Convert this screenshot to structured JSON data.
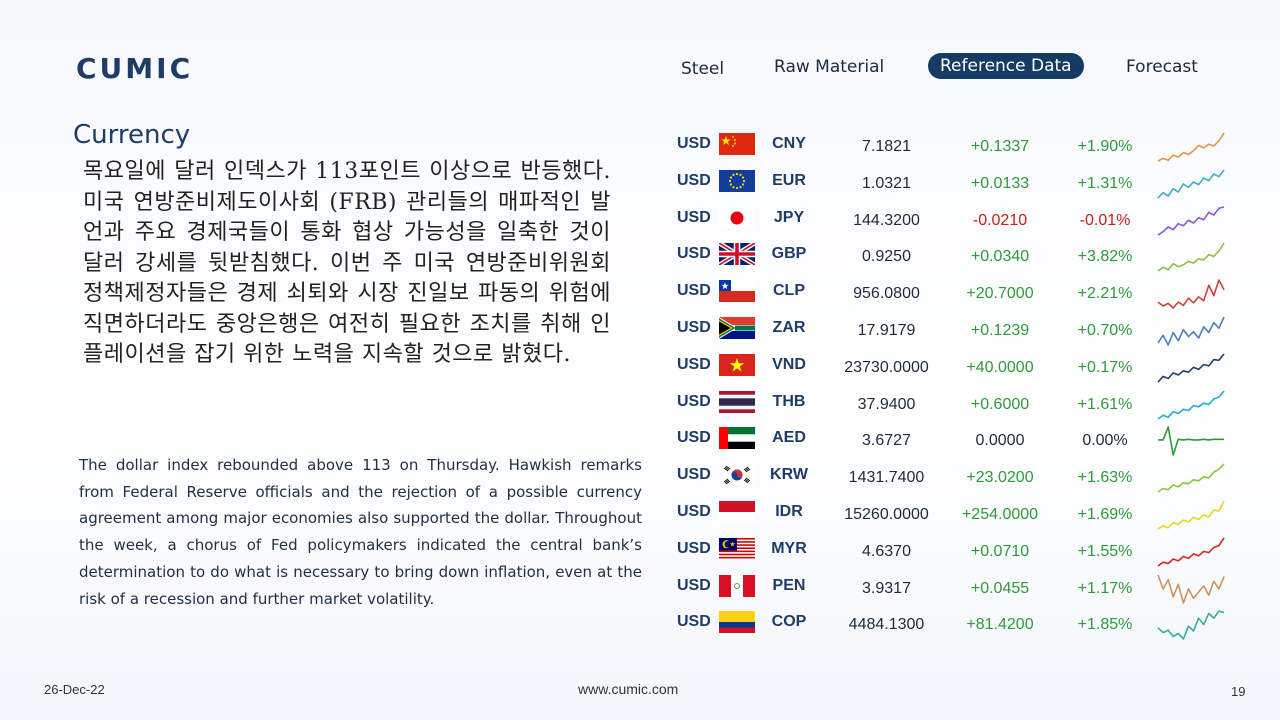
{
  "header": {
    "logo": "CUMIC",
    "nav": [
      {
        "label": "Steel",
        "active": false
      },
      {
        "label": "Raw Material",
        "active": false
      },
      {
        "label": "Reference Data",
        "active": true
      },
      {
        "label": "Forecast",
        "active": false
      }
    ]
  },
  "section": {
    "title": "Currency",
    "korean_text": "목요일에 달러 인덱스가 113포인트 이상으로 반등했다. 미국 연방준비제도이사회 (FRB) 관리들의 매파적인 발언과 주요 경제국들이 통화 협상 가능성을 일축한 것이 달러 강세를 뒷받침했다. 이번 주 미국 연방준비위원회 정책제정자들은 경제 쇠퇴와 시장 진일보 파동의 위험에 직면하더라도 중앙은행은 여전히 필요한 조치를 취해 인플레이션을 잡기 위한 노력을 지속할 것으로 밝혔다.",
    "english_text": "The dollar index rebounded above 113 on Thursday. Hawkish remarks from Federal Reserve officials and the rejection of a possible currency agreement among major economies also supported the dollar. Throughout the week, a chorus of Fed policymakers indicated the central bank’s determination to do what is necessary to bring down inflation, even at the risk of a recession and further market volatility."
  },
  "currency_table": [
    {
      "base": "USD",
      "quote": "CNY",
      "flag": "china-flag-icon",
      "rate": "7.1821",
      "change": "+0.1337",
      "change_pct": "+1.90%",
      "direction": "up",
      "spark_color": "#e6964a",
      "spark": [
        2,
        2.4,
        2.1,
        2.9,
        2.6,
        3.3,
        3.0,
        3.6,
        4.4,
        4.0,
        4.6,
        4.3,
        5.1,
        6.3
      ]
    },
    {
      "base": "USD",
      "quote": "EUR",
      "flag": "eu-flag-icon",
      "rate": "1.0321",
      "change": "+0.0133",
      "change_pct": "+1.31%",
      "direction": "up",
      "spark_color": "#3fa9c9",
      "spark": [
        1,
        1.8,
        1.3,
        2.4,
        1.9,
        3.1,
        2.6,
        3.4,
        3.0,
        4.0,
        3.6,
        4.6,
        4.2,
        5.2
      ]
    },
    {
      "base": "USD",
      "quote": "JPY",
      "flag": "japan-flag-icon",
      "rate": "144.3200",
      "change": "-0.0210",
      "change_pct": "-0.01%",
      "direction": "down",
      "spark_color": "#8a5cc4",
      "spark": [
        1,
        1.5,
        2.2,
        1.8,
        2.7,
        2.4,
        3.2,
        2.8,
        3.6,
        3.3,
        4.4,
        4.0,
        5.0,
        5.2
      ]
    },
    {
      "base": "USD",
      "quote": "GBP",
      "flag": "uk-flag-icon",
      "rate": "0.9250",
      "change": "+0.0340",
      "change_pct": "+3.82%",
      "direction": "up",
      "spark_color": "#8fbf4a",
      "spark": [
        1,
        1.6,
        1.2,
        2.2,
        1.7,
        2.0,
        2.6,
        2.3,
        3.0,
        2.8,
        3.7,
        3.4,
        4.3,
        5.6
      ]
    },
    {
      "base": "USD",
      "quote": "CLP",
      "flag": "chile-flag-icon",
      "rate": "956.0800",
      "change": "+20.7000",
      "change_pct": "+2.21%",
      "direction": "up",
      "spark_color": "#c9423c",
      "spark": [
        2,
        1.4,
        1.8,
        1.1,
        2.0,
        1.5,
        2.6,
        1.9,
        2.8,
        2.2,
        4.6,
        3.0,
        5.4,
        3.9
      ]
    },
    {
      "base": "USD",
      "quote": "ZAR",
      "flag": "south-africa-flag-icon",
      "rate": "17.9179",
      "change": "+0.1239",
      "change_pct": "+0.70%",
      "direction": "up",
      "spark_color": "#4f7fbf",
      "spark": [
        1.5,
        2.6,
        1.2,
        3.0,
        1.8,
        3.4,
        2.4,
        3.1,
        2.2,
        3.8,
        3.0,
        4.4,
        3.6,
        5.2
      ]
    },
    {
      "base": "USD",
      "quote": "VND",
      "flag": "vietnam-flag-icon",
      "rate": "23730.0000",
      "change": "+40.0000",
      "change_pct": "+0.17%",
      "direction": "up",
      "spark_color": "#24406b",
      "spark": [
        1,
        1.8,
        1.5,
        2.3,
        2.0,
        2.6,
        2.4,
        3.1,
        2.8,
        3.5,
        3.3,
        4.2,
        4.1,
        5.0
      ]
    },
    {
      "base": "USD",
      "quote": "THB",
      "flag": "thailand-flag-icon",
      "rate": "37.9400",
      "change": "+0.6000",
      "change_pct": "+1.61%",
      "direction": "up",
      "spark_color": "#2aa8d6",
      "spark": [
        1,
        1.6,
        1.3,
        2.2,
        1.9,
        2.6,
        2.4,
        3.2,
        3.0,
        3.6,
        3.4,
        4.3,
        4.6,
        5.6
      ]
    },
    {
      "base": "USD",
      "quote": "AED",
      "flag": "uae-flag-icon",
      "rate": "3.6727",
      "change": "0.0000",
      "change_pct": "0.00%",
      "direction": "flat",
      "spark_color": "#2a9a3a",
      "spark": [
        3.2,
        3.2,
        5.5,
        0.5,
        3.3,
        3.2,
        3.3,
        3.2,
        3.2,
        3.3,
        3.2,
        3.3,
        3.3,
        3.3
      ]
    },
    {
      "base": "USD",
      "quote": "KRW",
      "flag": "korea-flag-icon",
      "rate": "1431.7400",
      "change": "+23.0200",
      "change_pct": "+1.63%",
      "direction": "up",
      "spark_color": "#8cc63f",
      "spark": [
        1,
        1.6,
        1.4,
        2.2,
        1.9,
        2.6,
        2.4,
        3.1,
        2.9,
        3.6,
        3.4,
        4.4,
        4.9,
        5.8
      ]
    },
    {
      "base": "USD",
      "quote": "IDR",
      "flag": "indonesia-flag-icon",
      "rate": "15260.0000",
      "change": "+254.0000",
      "change_pct": "+1.69%",
      "direction": "up",
      "spark_color": "#e6d820",
      "spark": [
        1,
        1.5,
        1.2,
        2.0,
        1.7,
        2.4,
        2.1,
        2.8,
        2.5,
        3.2,
        2.9,
        4.0,
        3.8,
        5.4
      ]
    },
    {
      "base": "USD",
      "quote": "MYR",
      "flag": "malaysia-flag-icon",
      "rate": "4.6370",
      "change": "+0.0710",
      "change_pct": "+1.55%",
      "direction": "up",
      "spark_color": "#d42a22",
      "spark": [
        1,
        1.6,
        1.4,
        2.1,
        1.8,
        2.5,
        2.2,
        2.9,
        2.6,
        3.3,
        3.1,
        3.9,
        4.2,
        5.4
      ]
    },
    {
      "base": "USD",
      "quote": "PEN",
      "flag": "peru-flag-icon",
      "rate": "3.9317",
      "change": "+0.0455",
      "change_pct": "+1.17%",
      "direction": "up",
      "spark_color": "#c8955a",
      "spark": [
        4.8,
        3.0,
        4.2,
        2.0,
        3.6,
        1.2,
        3.0,
        1.8,
        2.6,
        3.4,
        2.2,
        4.0,
        3.0,
        4.6
      ]
    },
    {
      "base": "USD",
      "quote": "COP",
      "flag": "colombia-flag-icon",
      "rate": "4484.1300",
      "change": "+81.4200",
      "change_pct": "+1.85%",
      "direction": "up",
      "spark_color": "#3aaba0",
      "spark": [
        2.6,
        2.0,
        2.3,
        1.5,
        1.9,
        1.2,
        2.8,
        2.2,
        3.8,
        3.0,
        4.4,
        3.8,
        4.7,
        4.5
      ]
    }
  ],
  "footer": {
    "date": "26-Dec-22",
    "url": "www.cumic.com",
    "page": "19"
  }
}
